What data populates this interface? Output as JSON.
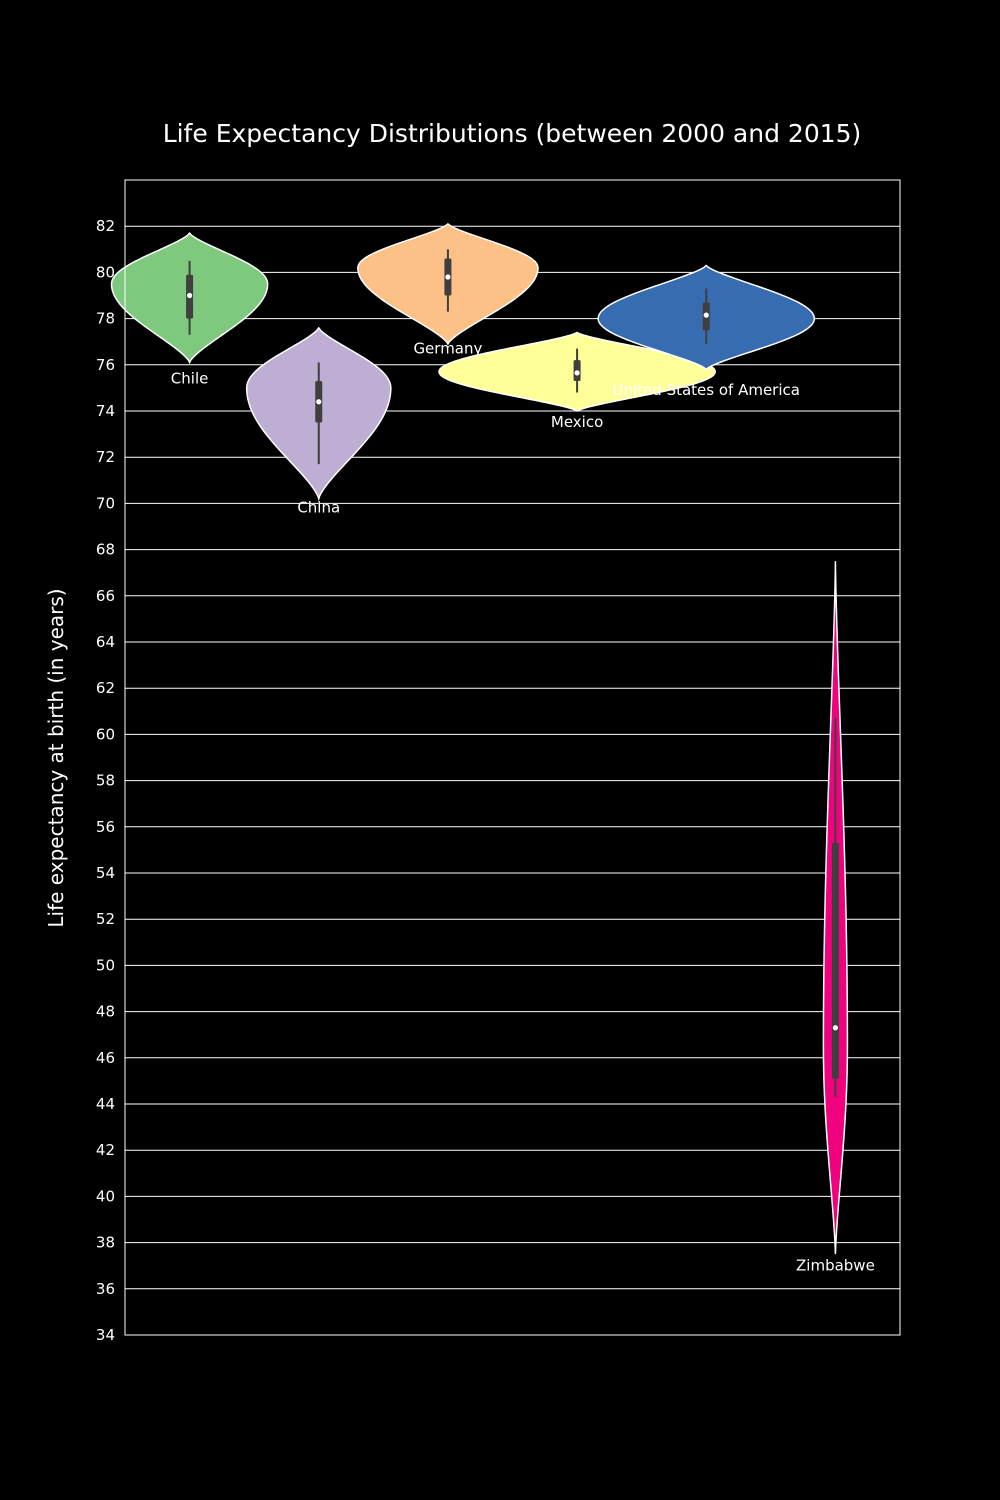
{
  "chart_data": {
    "type": "violin",
    "title": "Life Expectancy Distributions (between 2000 and 2015)",
    "xlabel": "",
    "ylabel": "Life expectancy at birth (in years)",
    "ylim": [
      34,
      84
    ],
    "yticks": [
      34,
      36,
      38,
      40,
      42,
      44,
      46,
      48,
      50,
      52,
      54,
      56,
      58,
      60,
      62,
      64,
      66,
      68,
      70,
      72,
      74,
      76,
      78,
      80,
      82
    ],
    "grid": true,
    "series": [
      {
        "name": "Chile",
        "color": "#7fc97f",
        "min": 77.3,
        "q1": 78.0,
        "median": 79.0,
        "q3": 79.9,
        "max": 80.5,
        "kde_low": 76.1,
        "kde_high": 81.7,
        "bulge": 79.5,
        "peak_halfwidth": 1.3,
        "label_value": 75.2
      },
      {
        "name": "China",
        "color": "#beaed4",
        "min": 71.7,
        "q1": 73.5,
        "median": 74.4,
        "q3": 75.3,
        "max": 76.1,
        "kde_low": 70.2,
        "kde_high": 77.6,
        "bulge": 75.0,
        "peak_halfwidth": 1.2,
        "label_value": 69.6
      },
      {
        "name": "Germany",
        "color": "#fdc086",
        "min": 78.3,
        "q1": 79.0,
        "median": 79.8,
        "q3": 80.6,
        "max": 81.0,
        "kde_low": 76.9,
        "kde_high": 82.1,
        "bulge": 80.2,
        "peak_halfwidth": 1.5,
        "label_value": 76.5
      },
      {
        "name": "Mexico",
        "color": "#ffff99",
        "min": 74.8,
        "q1": 75.3,
        "median": 75.65,
        "q3": 76.2,
        "max": 76.7,
        "kde_low": 74.0,
        "kde_high": 77.4,
        "bulge": 75.7,
        "peak_halfwidth": 2.3,
        "label_value": 73.3
      },
      {
        "name": "United States of America",
        "color": "#386cb0",
        "min": 76.9,
        "q1": 77.5,
        "median": 78.15,
        "q3": 78.7,
        "max": 79.3,
        "kde_low": 75.8,
        "kde_high": 80.3,
        "bulge": 78.0,
        "peak_halfwidth": 1.8,
        "label_value": 74.7
      },
      {
        "name": "Zimbabwe",
        "color": "#f0027f",
        "min": 44.3,
        "q1": 45.1,
        "median": 47.3,
        "q3": 55.3,
        "max": 60.7,
        "kde_low": 37.5,
        "kde_high": 67.5,
        "bulge": 46.5,
        "peak_halfwidth": 0.2,
        "label_value": 36.8
      }
    ]
  }
}
